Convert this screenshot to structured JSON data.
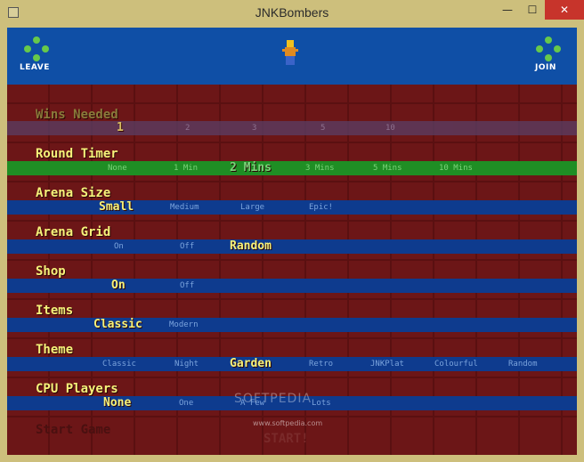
{
  "window": {
    "title": "JNKBombers",
    "minimize_glyph": "—",
    "maximize_glyph": "☐",
    "close_glyph": "✕"
  },
  "topbar": {
    "leave_label": "LEAVE",
    "join_label": "JOIN",
    "left_icon": "gamepad-icon",
    "right_icon": "gamepad-icon",
    "player_icon": "player-sprite-icon"
  },
  "colors": {
    "topbar": "#0f4fa6",
    "bar": "#0e3b8e",
    "bar_active": "#1f8e24",
    "title_text": "#f6f27a",
    "option_text": "#7aa3dc",
    "background": "#6c1617"
  },
  "menu": {
    "wins_needed": {
      "title": "Wins Needed",
      "options": [
        "1",
        "2",
        "3",
        "5",
        "10"
      ],
      "selected": "1"
    },
    "round_timer": {
      "title": "Round Timer",
      "options": [
        "None",
        "1 Min",
        "2 Mins",
        "3 Mins",
        "5 Mins",
        "10 Mins"
      ],
      "selected": "2 Mins"
    },
    "arena_size": {
      "title": "Arena Size",
      "options": [
        "Small",
        "Medium",
        "Large",
        "Epic!"
      ],
      "selected": "Small"
    },
    "arena_grid": {
      "title": "Arena Grid",
      "options": [
        "On",
        "Off",
        "Random"
      ],
      "selected": "Random"
    },
    "shop": {
      "title": "Shop",
      "options": [
        "On",
        "Off"
      ],
      "selected": "On"
    },
    "items": {
      "title": "Items",
      "options": [
        "Classic",
        "Modern"
      ],
      "selected": "Classic"
    },
    "theme": {
      "title": "Theme",
      "options": [
        "Classic",
        "Night",
        "Garden",
        "Retro",
        "JNKPlat",
        "Colourful",
        "Random"
      ],
      "selected": "Garden"
    },
    "cpu_players": {
      "title": "CPU Players",
      "options": [
        "None",
        "One",
        "A Few",
        "Lots"
      ],
      "selected": "None"
    },
    "start_game": {
      "title": "Start Game"
    },
    "start_button": "START!"
  },
  "watermark": {
    "text": "SOFTPEDIA",
    "url": "www.softpedia.com"
  }
}
